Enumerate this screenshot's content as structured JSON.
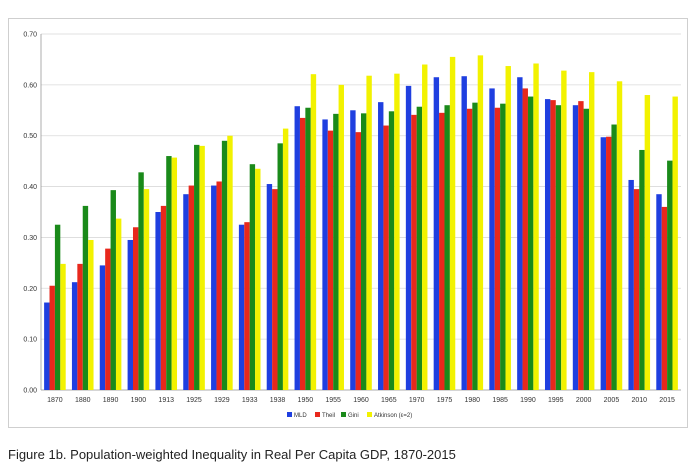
{
  "caption": "Figure 1b. Population-weighted Inequality in Real Per Capita GDP, 1870-2015",
  "chart_data": {
    "type": "bar",
    "categories": [
      "1870",
      "1880",
      "1890",
      "1900",
      "1913",
      "1925",
      "1929",
      "1933",
      "1938",
      "1950",
      "1955",
      "1960",
      "1965",
      "1970",
      "1975",
      "1980",
      "1985",
      "1990",
      "1995",
      "2000",
      "2005",
      "2010",
      "2015"
    ],
    "ylim": [
      0,
      0.7
    ],
    "yticks": [
      "0.00",
      "0.10",
      "0.20",
      "0.30",
      "0.40",
      "0.50",
      "0.60",
      "0.70"
    ],
    "grid": true,
    "legend_position": "bottom-center",
    "series": [
      {
        "name": "MLD",
        "color": "#1f3fe0",
        "values": [
          0.172,
          0.212,
          0.245,
          0.295,
          0.35,
          0.385,
          0.402,
          0.325,
          0.405,
          0.558,
          0.532,
          0.55,
          0.566,
          0.598,
          0.615,
          0.617,
          0.593,
          0.615,
          0.572,
          0.56,
          0.497,
          0.413,
          0.385
        ]
      },
      {
        "name": "Theil",
        "color": "#e8281c",
        "values": [
          0.205,
          0.248,
          0.278,
          0.32,
          0.362,
          0.402,
          0.41,
          0.33,
          0.395,
          0.535,
          0.51,
          0.507,
          0.52,
          0.541,
          0.545,
          0.553,
          0.555,
          0.593,
          0.57,
          0.568,
          0.498,
          0.395,
          0.36
        ]
      },
      {
        "name": "Gini",
        "color": "#1a8a1a",
        "values": [
          0.325,
          0.362,
          0.393,
          0.428,
          0.46,
          0.482,
          0.49,
          0.444,
          0.485,
          0.555,
          0.543,
          0.544,
          0.548,
          0.557,
          0.56,
          0.565,
          0.563,
          0.577,
          0.56,
          0.553,
          0.522,
          0.472,
          0.451
        ]
      },
      {
        "name": "Atkinson (ε=2)",
        "color": "#f2f200",
        "values": [
          0.248,
          0.295,
          0.337,
          0.395,
          0.457,
          0.48,
          0.5,
          0.435,
          0.514,
          0.621,
          0.6,
          0.618,
          0.622,
          0.64,
          0.655,
          0.658,
          0.637,
          0.642,
          0.628,
          0.625,
          0.607,
          0.58,
          0.577
        ]
      }
    ]
  }
}
